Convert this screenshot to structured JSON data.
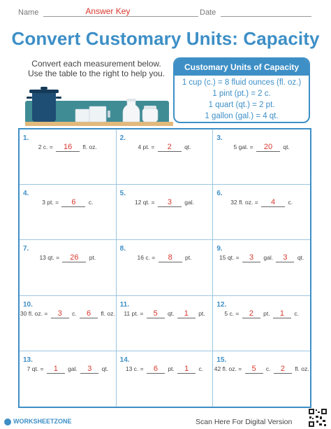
{
  "header": {
    "name_label": "Name",
    "name_value": "Answer Key",
    "date_label": "Date"
  },
  "title": "Convert Customary Units: Capacity",
  "instructions": [
    "Convert each measurement below.",
    "Use the table to the right to help you."
  ],
  "reference_table": {
    "heading": "Customary Units of Capacity",
    "rows": [
      "1 cup (c.) = 8 fluid ounces (fl. oz.)",
      "1 pint (pt.) = 2 c.",
      "1 quart (qt.) = 2 pt.",
      "1 gallon (gal.) = 4 qt."
    ]
  },
  "problems": [
    {
      "number": "1.",
      "parts": [
        "2 c. = ",
        {
          "answer": "16"
        },
        " fl. oz."
      ]
    },
    {
      "number": "2.",
      "parts": [
        "4 pt. = ",
        {
          "answer": "2"
        },
        " qt."
      ]
    },
    {
      "number": "3.",
      "parts": [
        "5 gal. = ",
        {
          "answer": "20"
        },
        " qt."
      ]
    },
    {
      "number": "4.",
      "parts": [
        "3 pt. = ",
        {
          "answer": "6"
        },
        " c."
      ]
    },
    {
      "number": "5.",
      "parts": [
        "12 qt. = ",
        {
          "answer": "3"
        },
        " gal."
      ]
    },
    {
      "number": "6.",
      "parts": [
        "32 fl. oz. = ",
        {
          "answer": "4"
        },
        " c."
      ]
    },
    {
      "number": "7.",
      "parts": [
        "13 qt. = ",
        {
          "answer": "26"
        },
        " pt."
      ]
    },
    {
      "number": "8.",
      "parts": [
        "16 c. = ",
        {
          "answer": "8"
        },
        " pt."
      ]
    },
    {
      "number": "9.",
      "parts": [
        "15 qt. = ",
        {
          "answer": "3",
          "small": true
        },
        " gal. ",
        {
          "answer": "3",
          "small": true
        },
        " qt."
      ]
    },
    {
      "number": "10.",
      "parts": [
        "30 fl. oz. = ",
        {
          "answer": "3",
          "small": true
        },
        " c. ",
        {
          "answer": "6",
          "small": true
        },
        " fl. oz."
      ]
    },
    {
      "number": "11.",
      "parts": [
        "11 pt. = ",
        {
          "answer": "5",
          "small": true
        },
        " qt. ",
        {
          "answer": "1",
          "small": true
        },
        " pt."
      ]
    },
    {
      "number": "12.",
      "parts": [
        "5 c. = ",
        {
          "answer": "2",
          "small": true
        },
        " pt. ",
        {
          "answer": "1",
          "small": true
        },
        " c."
      ]
    },
    {
      "number": "13.",
      "parts": [
        "7 qt. = ",
        {
          "answer": "1",
          "small": true
        },
        " gal. ",
        {
          "answer": "3",
          "small": true
        },
        " qt."
      ]
    },
    {
      "number": "14.",
      "parts": [
        "13 c. = ",
        {
          "answer": "6",
          "small": true
        },
        " pt. ",
        {
          "answer": "1",
          "small": true
        },
        " c."
      ]
    },
    {
      "number": "15.",
      "parts": [
        "42 fl. oz. = ",
        {
          "answer": "5",
          "small": true
        },
        " c. ",
        {
          "answer": "2",
          "small": true
        },
        " fl. oz."
      ]
    }
  ],
  "footer": {
    "logo": "WORKSHEETZONE",
    "scan_text": "Scan Here For Digital Version"
  },
  "colors": {
    "accent": "#3d8fc6",
    "answer": "#d9382e"
  }
}
